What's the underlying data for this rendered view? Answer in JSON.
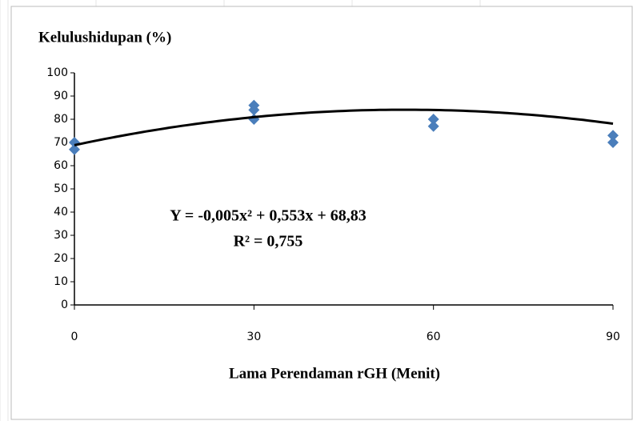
{
  "chart_data": {
    "type": "scatter",
    "title": "Kelulushidupan (%)",
    "x_label": "Lama Perendaman rGH (Menit)",
    "x": [
      0,
      0,
      30,
      30,
      30,
      60,
      60,
      90,
      90
    ],
    "values": [
      67,
      70,
      86,
      84,
      80,
      77,
      80,
      70,
      73
    ],
    "color": "#4a7ebb",
    "xlim": [
      0,
      90
    ],
    "xticks": [
      0,
      30,
      60,
      90
    ],
    "ylim": [
      0,
      100
    ],
    "yticks": [
      0,
      10,
      20,
      30,
      40,
      50,
      60,
      70,
      80,
      90,
      100
    ],
    "grid": false,
    "trendline": {
      "coefficients": [
        -0.005,
        0.553,
        68.83
      ],
      "color": "#000000"
    },
    "annotations": [
      "Y = -0,005x² + 0,553x + 68,83",
      "R² = 0,755"
    ]
  }
}
